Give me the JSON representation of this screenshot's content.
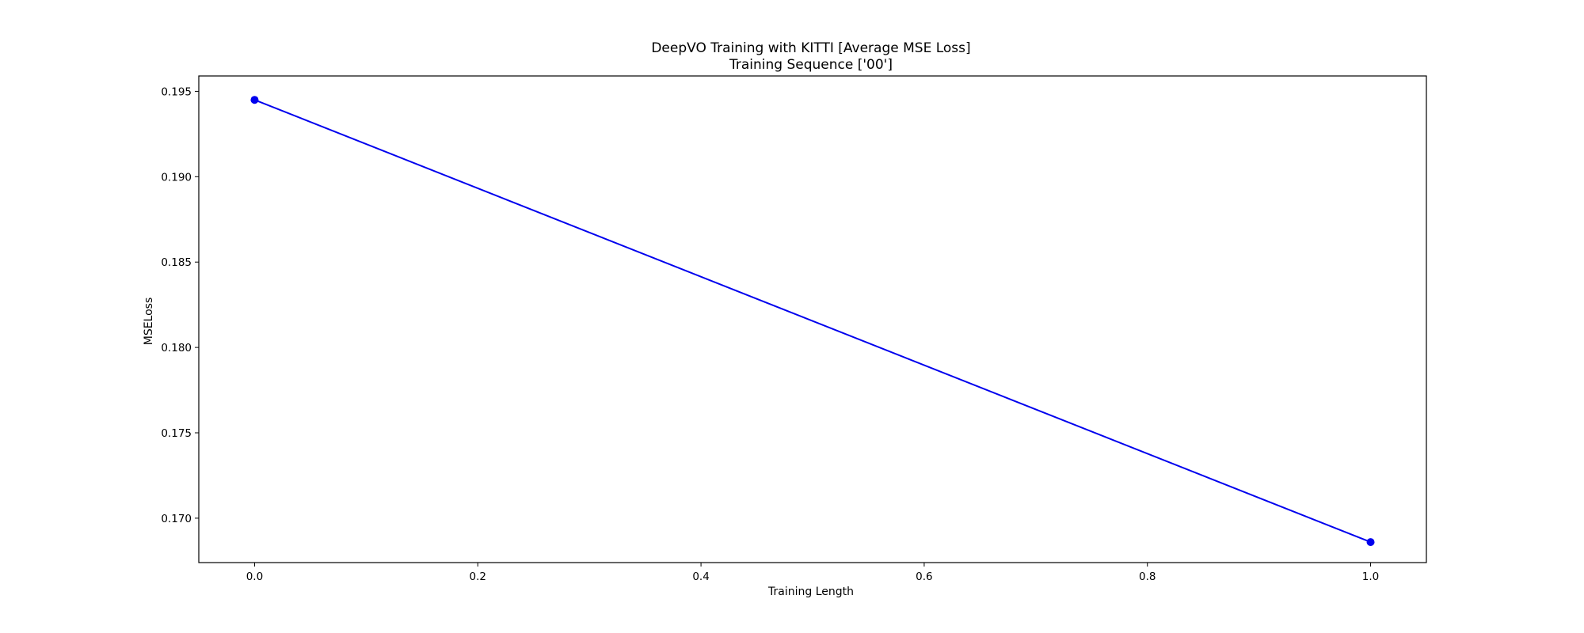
{
  "chart_data": {
    "type": "line",
    "title": "DeepVO Training with KITTI [Average MSE Loss]",
    "subtitle": "Training Sequence ['00']",
    "xlabel": "Training Length",
    "ylabel": "MSELoss",
    "xlim": [
      -0.05,
      1.05
    ],
    "ylim": [
      0.1674,
      0.1959
    ],
    "xticks": [
      0.0,
      0.2,
      0.4,
      0.6,
      0.8,
      1.0
    ],
    "xtick_labels": [
      "0.0",
      "0.2",
      "0.4",
      "0.6",
      "0.8",
      "1.0"
    ],
    "yticks": [
      0.17,
      0.175,
      0.18,
      0.185,
      0.19,
      0.195
    ],
    "ytick_labels": [
      "0.170",
      "0.175",
      "0.180",
      "0.185",
      "0.190",
      "0.195"
    ],
    "grid": false,
    "series": [
      {
        "color": "#0000ee",
        "marker": "circle",
        "x": [
          0.0,
          1.0
        ],
        "y": [
          0.1945,
          0.1686
        ]
      }
    ]
  }
}
